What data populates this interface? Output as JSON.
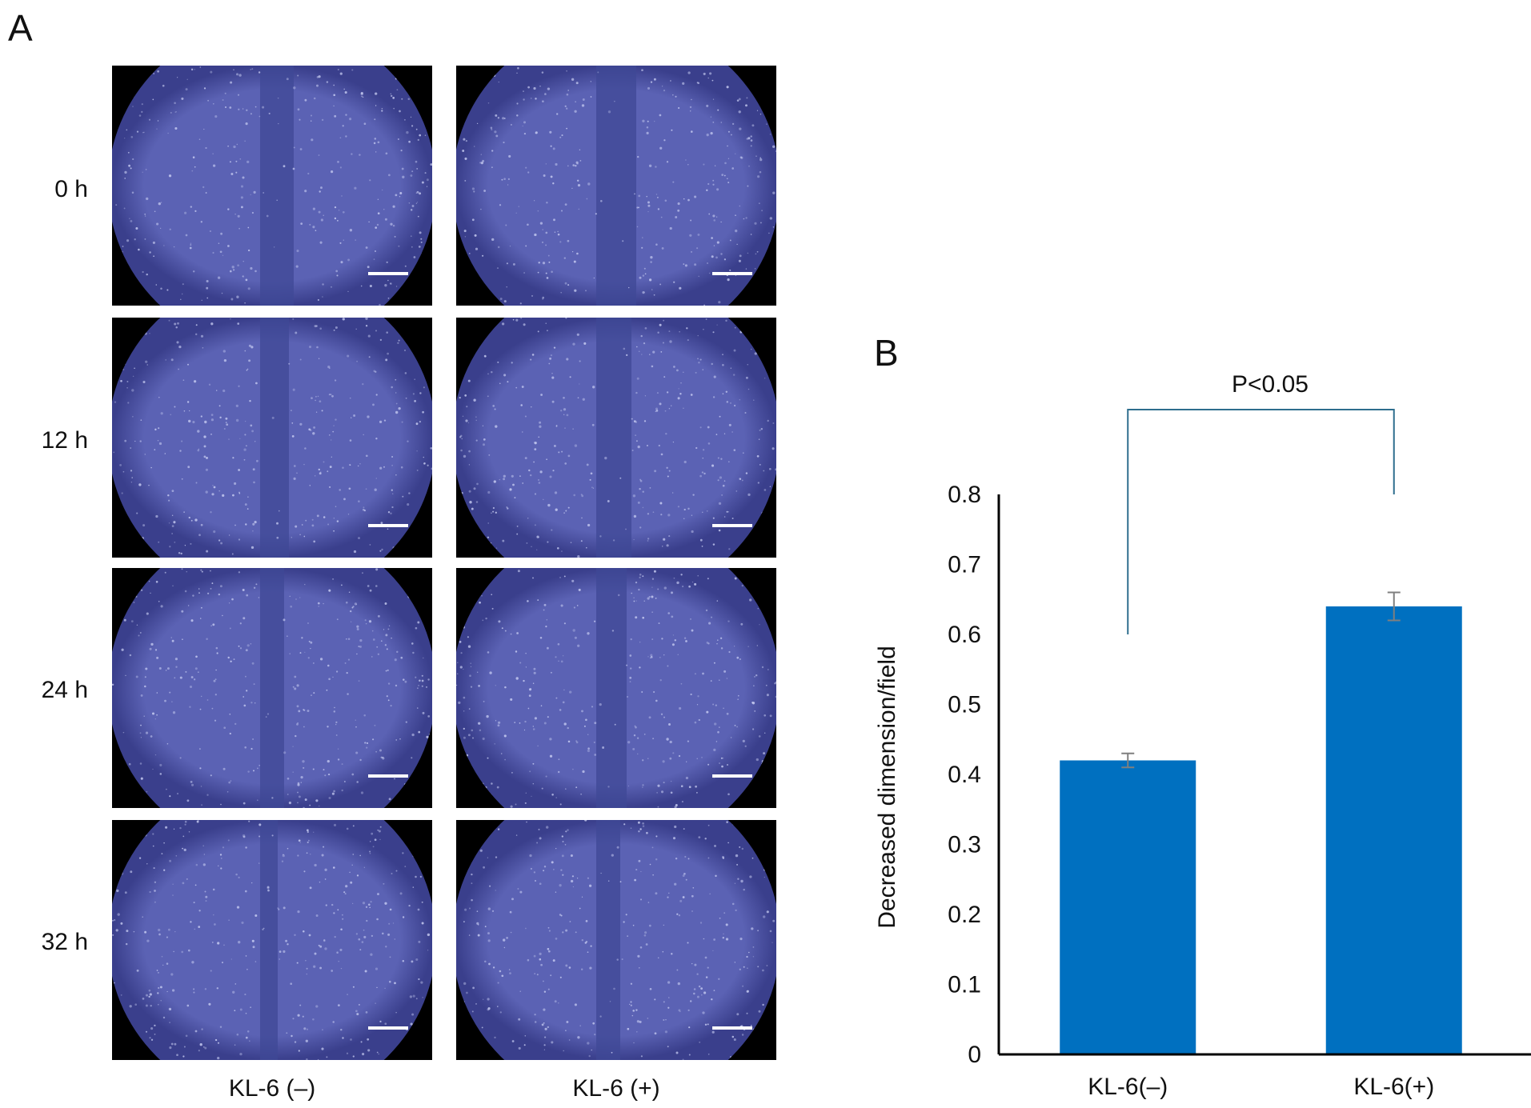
{
  "panel_a": {
    "letter": "A",
    "row_labels": [
      "0 h",
      "12 h",
      "24 h",
      "32 h"
    ],
    "col_labels": [
      "KL-6 (–)",
      "KL-6 (+)"
    ],
    "image_colors": {
      "field": "#5b62b4",
      "edge": "#3a3f8c",
      "speckle": "#c8cdf2",
      "gap": "#3f4896",
      "scalebar": "#ffffff"
    },
    "micrographs": [
      {
        "row": "0 h",
        "col": "KL-6 (–)",
        "name": "micrograph-0h-kl6-neg"
      },
      {
        "row": "0 h",
        "col": "KL-6 (+)",
        "name": "micrograph-0h-kl6-pos"
      },
      {
        "row": "12 h",
        "col": "KL-6 (–)",
        "name": "micrograph-12h-kl6-neg"
      },
      {
        "row": "12 h",
        "col": "KL-6 (+)",
        "name": "micrograph-12h-kl6-pos"
      },
      {
        "row": "24 h",
        "col": "KL-6 (–)",
        "name": "micrograph-24h-kl6-neg"
      },
      {
        "row": "24 h",
        "col": "KL-6 (+)",
        "name": "micrograph-24h-kl6-pos"
      },
      {
        "row": "32 h",
        "col": "KL-6 (–)",
        "name": "micrograph-32h-kl6-neg"
      },
      {
        "row": "32 h",
        "col": "KL-6 (+)",
        "name": "micrograph-32h-kl6-pos"
      }
    ]
  },
  "panel_b": {
    "letter": "B"
  },
  "chart_data": {
    "type": "bar",
    "categories": [
      "KL-6(–)",
      "KL-6(+)"
    ],
    "values": [
      0.42,
      0.64
    ],
    "error": [
      0.01,
      0.02
    ],
    "ylabel": "Decreased dimension/field",
    "xlabel": "",
    "ylim": [
      0,
      0.8
    ],
    "yticks": [
      0,
      0.1,
      0.2,
      0.3,
      0.4,
      0.5,
      0.6,
      0.7,
      0.8
    ],
    "ytick_labels": [
      "0",
      "0.1",
      "0.2",
      "0.3",
      "0.4",
      "0.5",
      "0.6",
      "0.7",
      "0.8"
    ],
    "bar_color": "#0070c0",
    "bracket_color": "#2e6e8e",
    "annotation": "P<0.05"
  }
}
